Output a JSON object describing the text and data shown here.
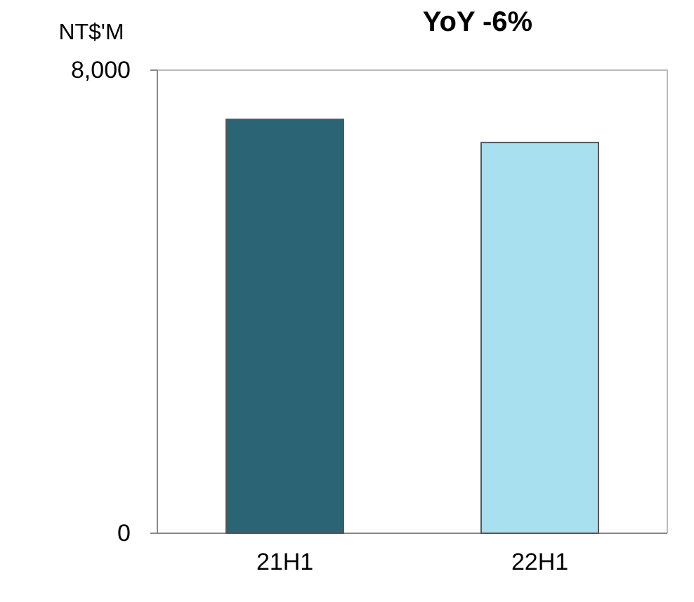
{
  "chart_data": {
    "type": "bar",
    "title": "YoY  -6%",
    "ylabel": "NT$'M",
    "categories": [
      "21H1",
      "22H1"
    ],
    "values": [
      7150,
      6750
    ],
    "colors": [
      "#2b6474",
      "#a9e0ef"
    ],
    "ylim": [
      0,
      8000
    ],
    "yticks": [
      0,
      {
        "value": 8000,
        "label": "8,000"
      }
    ]
  }
}
